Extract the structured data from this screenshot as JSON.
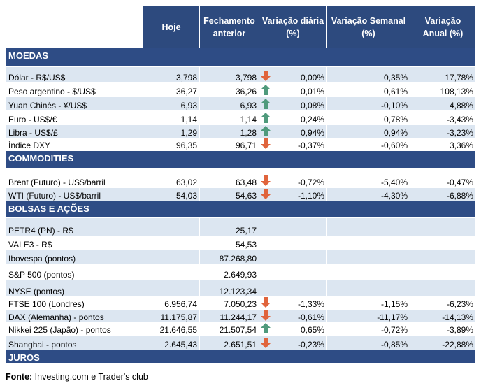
{
  "header": {
    "columns": [
      "Hoje",
      "Fechamento anterior",
      "Variação diária (%)",
      "Variação Semanal (%)",
      "Variação Anual (%)"
    ]
  },
  "sections": [
    {
      "title": "MOEDAS",
      "rows": [
        {
          "label": "Dólar - R$/US$",
          "values": [
            "3,798",
            "3,798",
            "0,00%",
            "0,35%",
            "17,78%"
          ]
        },
        {
          "label": "Peso argentino - $/US$",
          "values": [
            "36,27",
            "36,26",
            "0,01%",
            "0,61%",
            "108,13%"
          ]
        },
        {
          "label": "Yuan Chinês - ¥/US$",
          "values": [
            "6,93",
            "6,93",
            "0,08%",
            "-0,10%",
            "4,88%"
          ]
        },
        {
          "label": "Euro - US$/€",
          "values": [
            "1,14",
            "1,14",
            "0,24%",
            "0,78%",
            "-3,43%"
          ]
        },
        {
          "label": "Libra - US$/£",
          "values": [
            "1,29",
            "1,28",
            "0,94%",
            "0,94%",
            "-3,23%"
          ]
        },
        {
          "label": "Índice DXY",
          "values": [
            "96,35",
            "96,71",
            "-0,37%",
            "-0,60%",
            "3,36%"
          ]
        }
      ]
    },
    {
      "title": "COMMODITIES",
      "rows": [
        {
          "label": "Brent (Futuro) - US$/barril",
          "values": [
            "63,02",
            "63,48",
            "-0,72%",
            "-5,40%",
            "-0,47%"
          ]
        },
        {
          "label": "WTI (Futuro) - US$/barril",
          "values": [
            "54,03",
            "54,63",
            "-1,10%",
            "-4,30%",
            "-6,88%"
          ]
        }
      ]
    },
    {
      "title": "BOLSAS E AÇÕES",
      "rows": [
        {
          "label": "PETR4 (PN) - R$",
          "values": [
            null,
            "25,17",
            null,
            null,
            null
          ]
        },
        {
          "label": "VALE3 - R$",
          "values": [
            null,
            "54,53",
            null,
            null,
            null
          ]
        },
        {
          "label": "Ibovespa (pontos)",
          "values": [
            null,
            "87.268,80",
            null,
            null,
            null
          ]
        },
        {
          "label": "S&P 500 (pontos)",
          "values": [
            null,
            "2.649,93",
            null,
            null,
            null
          ]
        },
        {
          "label": "NYSE (pontos)",
          "values": [
            null,
            "12.123,34",
            null,
            null,
            null
          ]
        },
        {
          "label": "FTSE 100 (Londres)",
          "values": [
            "6.956,74",
            "7.050,23",
            "-1,33%",
            "-1,15%",
            "-6,23%"
          ]
        },
        {
          "label": "DAX (Alemanha) - pontos",
          "values": [
            "11.175,87",
            "11.244,17",
            "-0,61%",
            "-11,17%",
            "-14,13%"
          ]
        },
        {
          "label": "Nikkei 225 (Japão) - pontos",
          "values": [
            "21.646,55",
            "21.507,54",
            "0,65%",
            "-0,72%",
            "-3,89%"
          ]
        },
        {
          "label": "Shanghai - pontos",
          "values": [
            "2.645,43",
            "2.651,51",
            "-0,23%",
            "-0,85%",
            "-22,88%"
          ]
        }
      ]
    },
    {
      "title": "JUROS",
      "rows": []
    }
  ],
  "source": {
    "label": "Fonte:",
    "text": "Investing.com e Trader's club"
  }
}
